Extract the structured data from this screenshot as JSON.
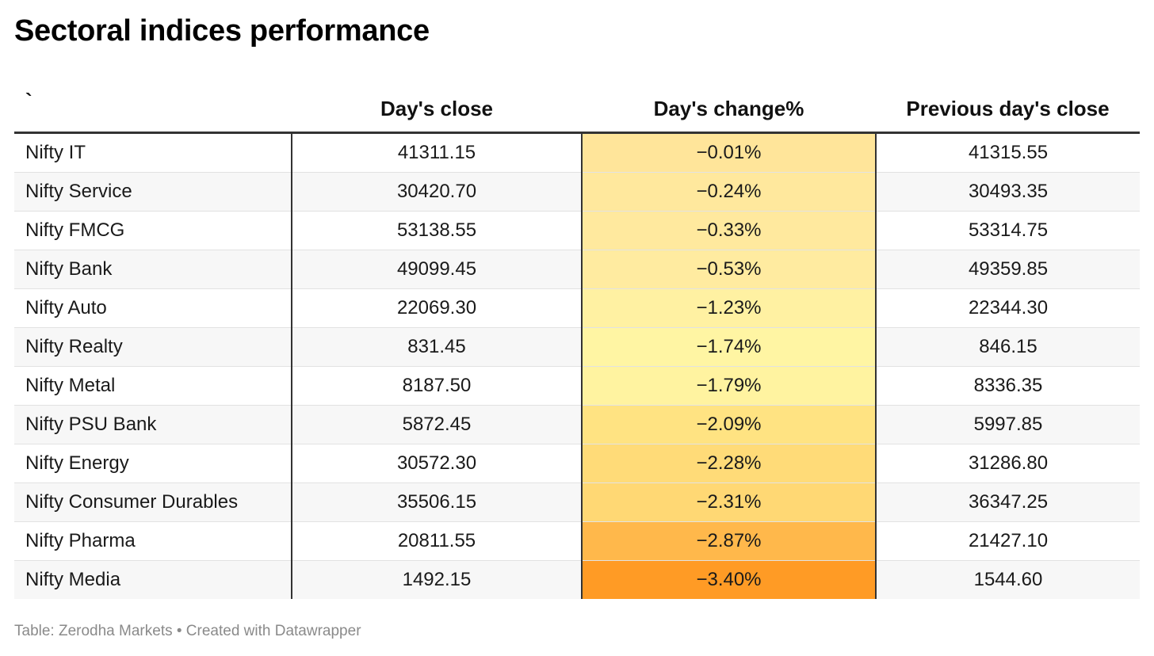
{
  "title": "Sectoral indices performance",
  "footer": "Table: Zerodha Markets • Created with Datawrapper",
  "chart_data": {
    "type": "table",
    "title": "Sectoral indices performance",
    "columns": [
      "`",
      "Day's close",
      "Day's change%",
      "Previous day's close"
    ],
    "rows": [
      {
        "name": "Nifty IT",
        "close": "41311.15",
        "change": "−0.01%",
        "change_value": -0.01,
        "prev": "41315.55",
        "color": "#FFE59A"
      },
      {
        "name": "Nifty Service",
        "close": "30420.70",
        "change": "−0.24%",
        "change_value": -0.24,
        "prev": "30493.35",
        "color": "#FFE89D"
      },
      {
        "name": "Nifty FMCG",
        "close": "53138.55",
        "change": "−0.33%",
        "change_value": -0.33,
        "prev": "53314.75",
        "color": "#FFE99E"
      },
      {
        "name": "Nifty Bank",
        "close": "49099.45",
        "change": "−0.53%",
        "change_value": -0.53,
        "prev": "49359.85",
        "color": "#FFEBA0"
      },
      {
        "name": "Nifty Auto",
        "close": "22069.30",
        "change": "−1.23%",
        "change_value": -1.23,
        "prev": "22344.30",
        "color": "#FFF1A2"
      },
      {
        "name": "Nifty Realty",
        "close": "831.45",
        "change": "−1.74%",
        "change_value": -1.74,
        "prev": "846.15",
        "color": "#FFF5A3"
      },
      {
        "name": "Nifty Metal",
        "close": "8187.50",
        "change": "−1.79%",
        "change_value": -1.79,
        "prev": "8336.35",
        "color": "#FFF3A0"
      },
      {
        "name": "Nifty PSU Bank",
        "close": "5872.45",
        "change": "−2.09%",
        "change_value": -2.09,
        "prev": "5997.85",
        "color": "#FFE382"
      },
      {
        "name": "Nifty Energy",
        "close": "30572.30",
        "change": "−2.28%",
        "change_value": -2.28,
        "prev": "31286.80",
        "color": "#FFDB78"
      },
      {
        "name": "Nifty Consumer Durables",
        "close": "35506.15",
        "change": "−2.31%",
        "change_value": -2.31,
        "prev": "36347.25",
        "color": "#FFD874"
      },
      {
        "name": "Nifty Pharma",
        "close": "20811.55",
        "change": "−2.87%",
        "change_value": -2.87,
        "prev": "21427.10",
        "color": "#FFB84B"
      },
      {
        "name": "Nifty Media",
        "close": "1492.15",
        "change": "−3.40%",
        "change_value": -3.4,
        "prev": "1544.60",
        "color": "#FF9B25"
      }
    ]
  }
}
